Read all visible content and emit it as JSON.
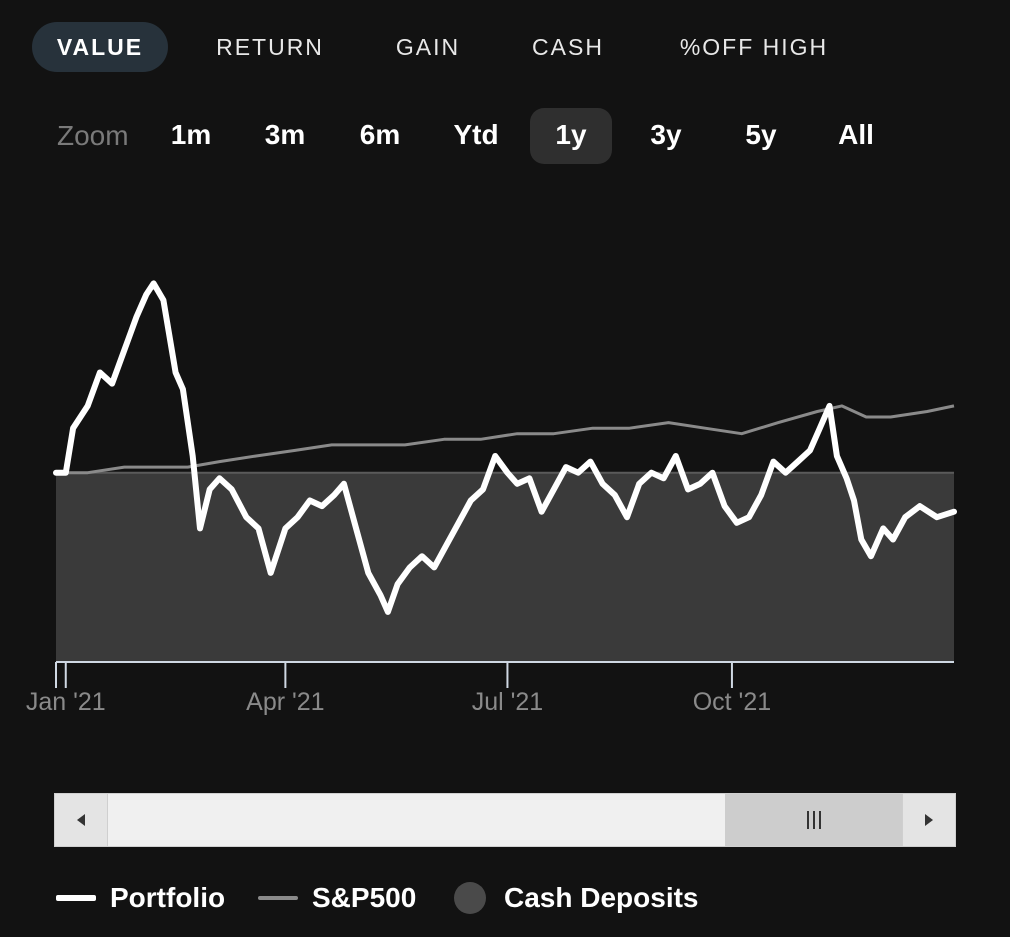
{
  "metric_tabs": [
    {
      "label": "VALUE",
      "active": true
    },
    {
      "label": "RETURN",
      "active": false
    },
    {
      "label": "GAIN",
      "active": false
    },
    {
      "label": "CASH",
      "active": false
    },
    {
      "label": "%OFF HIGH",
      "active": false
    }
  ],
  "zoom": {
    "label": "Zoom",
    "options": [
      {
        "label": "1m",
        "active": false
      },
      {
        "label": "3m",
        "active": false
      },
      {
        "label": "6m",
        "active": false
      },
      {
        "label": "Ytd",
        "active": false
      },
      {
        "label": "1y",
        "active": true
      },
      {
        "label": "3y",
        "active": false
      },
      {
        "label": "5y",
        "active": false
      },
      {
        "label": "All",
        "active": false
      }
    ]
  },
  "legend": {
    "portfolio": "Portfolio",
    "sp500": "S&P500",
    "cash_deposits": "Cash Deposits"
  },
  "scrollbar": {
    "left_arrow_icon": "chevron-left-icon",
    "right_arrow_icon": "chevron-right-icon",
    "thumb_grip_icon": "grip-icon"
  },
  "colors": {
    "background": "#121212",
    "active_tab": "#27323b",
    "portfolio": "#ffffff",
    "sp500": "#8a8a8a",
    "cash_deposits": "#3a3a3a",
    "axis_label": "#8a8a8a"
  },
  "chart_data": {
    "type": "line",
    "x_range": [
      "2020-12-28",
      "2021-12-31"
    ],
    "x_ticks": [
      "Jan '21",
      "Apr '21",
      "Jul '21",
      "Oct '21"
    ],
    "y_axis_labels": false,
    "grid": false,
    "legend_position": "bottom-left",
    "series": [
      {
        "name": "Portfolio",
        "type": "line",
        "points": [
          [
            "2020-12-28",
            100
          ],
          [
            "2021-01-01",
            100
          ],
          [
            "2021-01-04",
            108
          ],
          [
            "2021-01-10",
            112
          ],
          [
            "2021-01-15",
            118
          ],
          [
            "2021-01-20",
            116
          ],
          [
            "2021-01-25",
            122
          ],
          [
            "2021-01-30",
            128
          ],
          [
            "2021-02-03",
            132
          ],
          [
            "2021-02-06",
            134
          ],
          [
            "2021-02-10",
            131
          ],
          [
            "2021-02-15",
            118
          ],
          [
            "2021-02-18",
            115
          ],
          [
            "2021-02-22",
            103
          ],
          [
            "2021-02-25",
            90
          ],
          [
            "2021-03-01",
            97
          ],
          [
            "2021-03-05",
            99
          ],
          [
            "2021-03-10",
            97
          ],
          [
            "2021-03-16",
            92
          ],
          [
            "2021-03-21",
            90
          ],
          [
            "2021-03-26",
            82
          ],
          [
            "2021-04-01",
            90
          ],
          [
            "2021-04-06",
            92
          ],
          [
            "2021-04-11",
            95
          ],
          [
            "2021-04-16",
            94
          ],
          [
            "2021-04-21",
            96
          ],
          [
            "2021-04-25",
            98
          ],
          [
            "2021-04-30",
            90
          ],
          [
            "2021-05-05",
            82
          ],
          [
            "2021-05-10",
            78
          ],
          [
            "2021-05-13",
            75
          ],
          [
            "2021-05-17",
            80
          ],
          [
            "2021-05-22",
            83
          ],
          [
            "2021-05-27",
            85
          ],
          [
            "2021-06-01",
            83
          ],
          [
            "2021-06-06",
            87
          ],
          [
            "2021-06-11",
            91
          ],
          [
            "2021-06-16",
            95
          ],
          [
            "2021-06-21",
            97
          ],
          [
            "2021-06-26",
            103
          ],
          [
            "2021-07-01",
            100
          ],
          [
            "2021-07-05",
            98
          ],
          [
            "2021-07-10",
            99
          ],
          [
            "2021-07-15",
            93
          ],
          [
            "2021-07-20",
            97
          ],
          [
            "2021-07-25",
            101
          ],
          [
            "2021-07-30",
            100
          ],
          [
            "2021-08-04",
            102
          ],
          [
            "2021-08-09",
            98
          ],
          [
            "2021-08-14",
            96
          ],
          [
            "2021-08-19",
            92
          ],
          [
            "2021-08-24",
            98
          ],
          [
            "2021-08-29",
            100
          ],
          [
            "2021-09-03",
            99
          ],
          [
            "2021-09-08",
            103
          ],
          [
            "2021-09-13",
            97
          ],
          [
            "2021-09-18",
            98
          ],
          [
            "2021-09-23",
            100
          ],
          [
            "2021-09-28",
            94
          ],
          [
            "2021-10-03",
            91
          ],
          [
            "2021-10-08",
            92
          ],
          [
            "2021-10-13",
            96
          ],
          [
            "2021-10-18",
            102
          ],
          [
            "2021-10-23",
            100
          ],
          [
            "2021-10-28",
            102
          ],
          [
            "2021-11-02",
            104
          ],
          [
            "2021-11-06",
            108
          ],
          [
            "2021-11-10",
            112
          ],
          [
            "2021-11-13",
            103
          ],
          [
            "2021-11-17",
            99
          ],
          [
            "2021-11-20",
            95
          ],
          [
            "2021-11-23",
            88
          ],
          [
            "2021-11-27",
            85
          ],
          [
            "2021-12-02",
            90
          ],
          [
            "2021-12-06",
            88
          ],
          [
            "2021-12-11",
            92
          ],
          [
            "2021-12-17",
            94
          ],
          [
            "2021-12-24",
            92
          ],
          [
            "2021-12-31",
            93
          ]
        ]
      },
      {
        "name": "S&P500",
        "type": "line",
        "points": [
          [
            "2020-12-28",
            100
          ],
          [
            "2021-01-10",
            100
          ],
          [
            "2021-01-25",
            101
          ],
          [
            "2021-02-10",
            101
          ],
          [
            "2021-02-20",
            101
          ],
          [
            "2021-03-05",
            102
          ],
          [
            "2021-03-20",
            103
          ],
          [
            "2021-04-05",
            104
          ],
          [
            "2021-04-20",
            105
          ],
          [
            "2021-05-05",
            105
          ],
          [
            "2021-05-20",
            105
          ],
          [
            "2021-06-05",
            106
          ],
          [
            "2021-06-20",
            106
          ],
          [
            "2021-07-05",
            107
          ],
          [
            "2021-07-20",
            107
          ],
          [
            "2021-08-05",
            108
          ],
          [
            "2021-08-20",
            108
          ],
          [
            "2021-09-05",
            109
          ],
          [
            "2021-09-20",
            108
          ],
          [
            "2021-10-05",
            107
          ],
          [
            "2021-10-20",
            109
          ],
          [
            "2021-11-05",
            111
          ],
          [
            "2021-11-15",
            112
          ],
          [
            "2021-11-25",
            110
          ],
          [
            "2021-12-05",
            110
          ],
          [
            "2021-12-20",
            111
          ],
          [
            "2021-12-31",
            112
          ]
        ]
      },
      {
        "name": "Cash Deposits",
        "type": "area",
        "points": [
          [
            "2020-12-28",
            100
          ],
          [
            "2021-12-31",
            100
          ]
        ]
      }
    ]
  }
}
